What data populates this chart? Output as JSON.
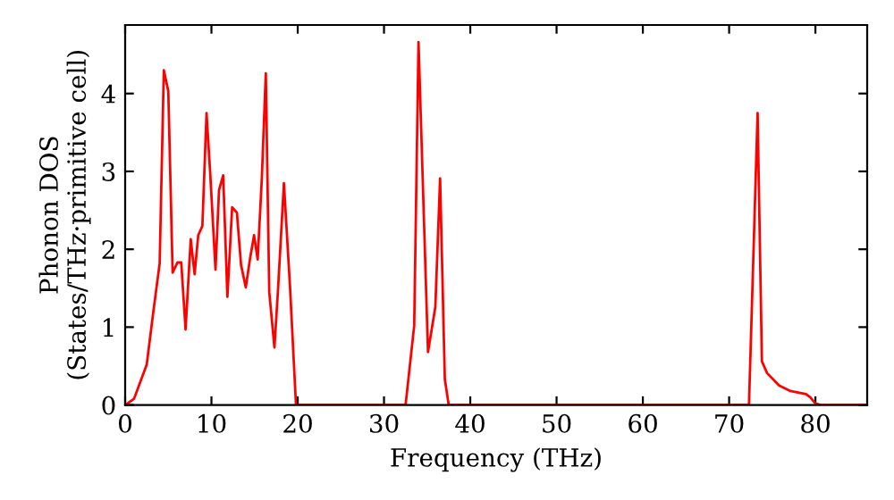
{
  "chart_data": {
    "type": "line",
    "xlabel": "Frequency (THz)",
    "ylabel": "Phonon DOS\n(States/THz·primitive cell)",
    "xlim": [
      0,
      86
    ],
    "ylim": [
      0,
      4.88
    ],
    "xticks": [
      0,
      10,
      20,
      30,
      40,
      50,
      60,
      70,
      80
    ],
    "yticks": [
      0,
      1,
      2,
      3,
      4
    ],
    "grid": false,
    "marker": "none",
    "line_style": "solid",
    "series": [
      {
        "color": "#ff0000",
        "x": [
          0,
          1.03,
          2.5,
          3.2,
          4.0,
          4.48,
          5.0,
          5.5,
          6.06,
          6.5,
          7.0,
          7.6,
          8.05,
          8.47,
          8.95,
          9.43,
          9.85,
          10.47,
          10.88,
          11.36,
          11.85,
          12.4,
          12.95,
          13.43,
          13.98,
          14.46,
          14.94,
          15.36,
          15.84,
          16.3,
          16.7,
          17.3,
          17.7,
          18.4,
          19.1,
          19.8,
          32.5,
          33.5,
          34.0,
          35.1,
          35.95,
          36.5,
          37.05,
          37.5,
          72.3,
          73.3,
          73.8,
          74.4,
          75.8,
          77.1,
          78.9,
          79.4,
          80.0,
          80.6,
          86
        ],
        "values": [
          0,
          0.08,
          0.52,
          1.14,
          1.82,
          4.3,
          4.03,
          1.7,
          1.83,
          1.83,
          0.97,
          2.13,
          1.68,
          2.18,
          2.3,
          3.75,
          2.99,
          1.74,
          2.76,
          2.95,
          1.39,
          2.54,
          2.47,
          1.8,
          1.51,
          1.87,
          2.18,
          1.87,
          2.91,
          4.26,
          1.45,
          0.74,
          1.45,
          2.85,
          1.53,
          0,
          0,
          1.02,
          4.66,
          0.68,
          1.26,
          2.91,
          0.33,
          0,
          0,
          3.75,
          0.56,
          0.41,
          0.25,
          0.18,
          0.14,
          0.1,
          0.02,
          0,
          0
        ]
      }
    ]
  }
}
